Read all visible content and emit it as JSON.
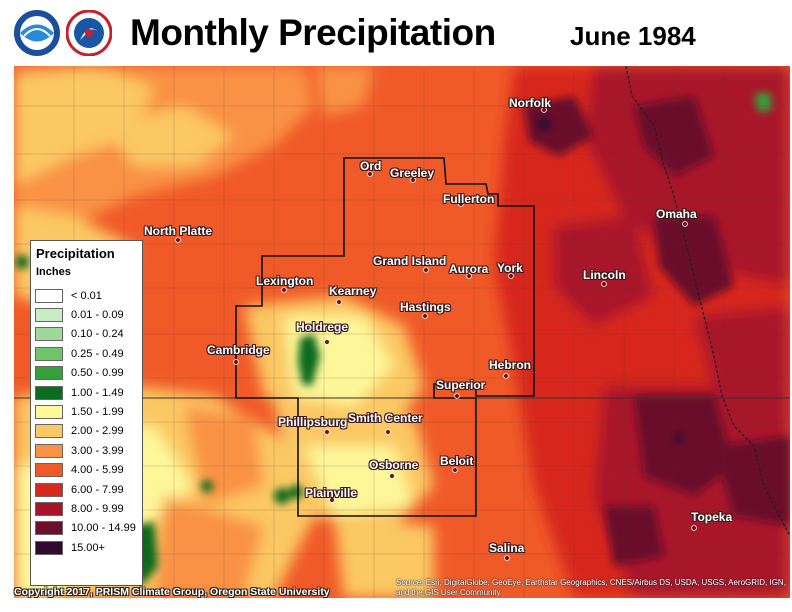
{
  "header": {
    "title": "Monthly Precipitation",
    "date": "June 1984",
    "logos": [
      "noaa-logo",
      "national-weather-service-logo"
    ]
  },
  "map": {
    "cities": [
      {
        "name": "Norfolk"
      },
      {
        "name": "Ord"
      },
      {
        "name": "Greeley"
      },
      {
        "name": "Fullerton"
      },
      {
        "name": "Omaha"
      },
      {
        "name": "North Platte"
      },
      {
        "name": "Grand Island"
      },
      {
        "name": "Aurora"
      },
      {
        "name": "York"
      },
      {
        "name": "Lincoln"
      },
      {
        "name": "Lexington"
      },
      {
        "name": "Kearney"
      },
      {
        "name": "Hastings"
      },
      {
        "name": "Holdrege"
      },
      {
        "name": "Cambridge"
      },
      {
        "name": "Hebron"
      },
      {
        "name": "Superior"
      },
      {
        "name": "Phillipsburg"
      },
      {
        "name": "Smith Center"
      },
      {
        "name": "Beloit"
      },
      {
        "name": "Osborne"
      },
      {
        "name": "Plainville"
      },
      {
        "name": "Topeka"
      },
      {
        "name": "Salina"
      }
    ]
  },
  "legend": {
    "title": "Precipitation",
    "units": "Inches",
    "items": [
      {
        "label": "< 0.01",
        "color": "#ffffff"
      },
      {
        "label": "0.01 - 0.09",
        "color": "#c9ecc4"
      },
      {
        "label": "0.10 - 0.24",
        "color": "#9fd99a"
      },
      {
        "label": "0.25 - 0.49",
        "color": "#6fc46b"
      },
      {
        "label": "0.50 - 0.99",
        "color": "#36a13b"
      },
      {
        "label": "1.00 - 1.49",
        "color": "#0b6b1e"
      },
      {
        "label": "1.50 - 1.99",
        "color": "#fdf79a"
      },
      {
        "label": "2.00 - 2.99",
        "color": "#fbc864"
      },
      {
        "label": "3.00 - 3.99",
        "color": "#f99244"
      },
      {
        "label": "4.00 - 5.99",
        "color": "#f05a28"
      },
      {
        "label": "6.00 - 7.99",
        "color": "#d7281e"
      },
      {
        "label": "8.00 - 9.99",
        "color": "#a8142a"
      },
      {
        "label": "10.00 - 14.99",
        "color": "#6b0f2c"
      },
      {
        "label": "15.00+",
        "color": "#2e0a30"
      }
    ]
  },
  "footer": {
    "copyright": "Copyright 2017, PRISM Climate Group, Oregon State University",
    "credits": "Source: Esri, DigitalGlobe, GeoEye, Earthstar Geographics, CNES/Airbus DS, USDA, USGS, AeroGRID, IGN, and the GIS User Community"
  }
}
